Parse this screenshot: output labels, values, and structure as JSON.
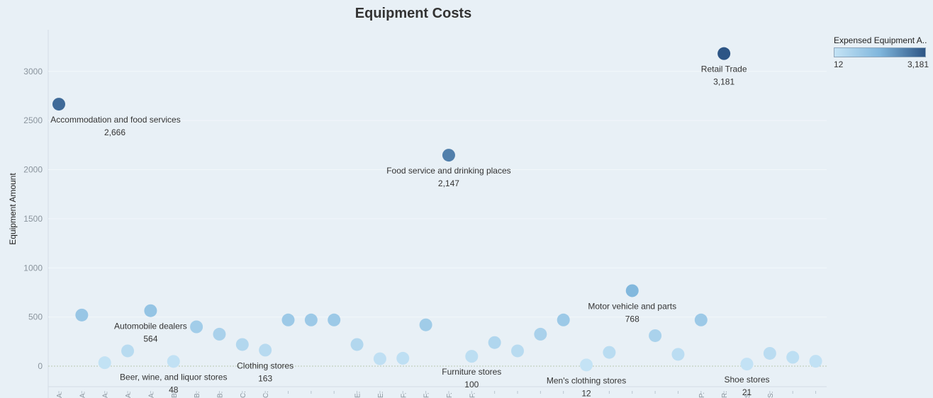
{
  "chart_data": {
    "type": "scatter",
    "title": "Equipment Costs",
    "ylabel": "Equipment Amount",
    "xlabel": "",
    "ylim": [
      -200,
      3350
    ],
    "yticks": [
      0,
      500,
      1000,
      1500,
      2000,
      2500,
      3000
    ],
    "grid": true,
    "legend": {
      "title": "Expensed Equipment A..",
      "min_label": "12",
      "max_label": "3,181",
      "min": 12,
      "max": 3181,
      "color_min": "#c4e3f5",
      "color_mid": "#7fb6dc",
      "color_max": "#2d5585",
      "placement": "top-right"
    },
    "x_tick_labels": [
      "A.",
      "A.",
      "A.",
      "A.",
      "A.",
      "B.",
      "B.",
      "B.",
      "C.",
      "C.",
      "",
      "",
      "",
      "E.",
      "E.",
      "F.",
      "F.",
      "F.",
      "F.",
      "",
      "",
      "",
      "",
      "",
      "",
      "",
      "",
      "",
      "P.",
      "R.",
      "S.",
      "S.",
      "",
      ""
    ],
    "points": [
      {
        "x": 0,
        "y": 2666,
        "name": "Accommodation and food services",
        "value_label": "2,666"
      },
      {
        "x": 1,
        "y": 520
      },
      {
        "x": 2,
        "y": 35
      },
      {
        "x": 3,
        "y": 155
      },
      {
        "x": 4,
        "y": 564,
        "name": "Automobile dealers",
        "value_label": "564"
      },
      {
        "x": 5,
        "y": 48,
        "name": "Beer, wine, and liquor stores",
        "value_label": "48"
      },
      {
        "x": 6,
        "y": 400
      },
      {
        "x": 7,
        "y": 325
      },
      {
        "x": 8,
        "y": 220
      },
      {
        "x": 9,
        "y": 163,
        "name": "Clothing stores",
        "value_label": "163"
      },
      {
        "x": 10,
        "y": 470
      },
      {
        "x": 11,
        "y": 470
      },
      {
        "x": 12,
        "y": 470
      },
      {
        "x": 13,
        "y": 220
      },
      {
        "x": 14,
        "y": 75
      },
      {
        "x": 15,
        "y": 80
      },
      {
        "x": 16,
        "y": 420
      },
      {
        "x": 17,
        "y": 2147,
        "name": "Food service and drinking places",
        "value_label": "2,147"
      },
      {
        "x": 18,
        "y": 100,
        "name": "Furniture stores",
        "value_label": "100"
      },
      {
        "x": 19,
        "y": 240
      },
      {
        "x": 20,
        "y": 155
      },
      {
        "x": 21,
        "y": 325
      },
      {
        "x": 22,
        "y": 470
      },
      {
        "x": 23,
        "y": 12,
        "name": "Men's clothing stores",
        "value_label": "12"
      },
      {
        "x": 24,
        "y": 140
      },
      {
        "x": 25,
        "y": 768,
        "name": "Motor vehicle and parts",
        "value_label": "768"
      },
      {
        "x": 26,
        "y": 310
      },
      {
        "x": 27,
        "y": 120
      },
      {
        "x": 28,
        "y": 470
      },
      {
        "x": 29,
        "y": 3181,
        "name": "Retail Trade",
        "value_label": "3,181"
      },
      {
        "x": 30,
        "y": 21,
        "name": "Shoe stores",
        "value_label": "21"
      },
      {
        "x": 31,
        "y": 130
      },
      {
        "x": 32,
        "y": 90
      },
      {
        "x": 33,
        "y": 50
      }
    ]
  }
}
